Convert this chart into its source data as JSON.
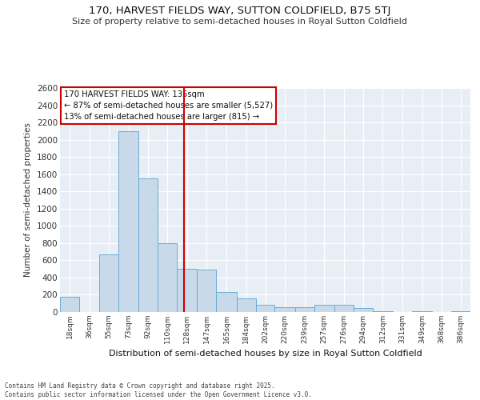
{
  "title1": "170, HARVEST FIELDS WAY, SUTTON COLDFIELD, B75 5TJ",
  "title2": "Size of property relative to semi-detached houses in Royal Sutton Coldfield",
  "xlabel": "Distribution of semi-detached houses by size in Royal Sutton Coldfield",
  "ylabel": "Number of semi-detached properties",
  "footnote": "Contains HM Land Registry data © Crown copyright and database right 2025.\nContains public sector information licensed under the Open Government Licence v3.0.",
  "annotation_title": "170 HARVEST FIELDS WAY: 135sqm",
  "annotation_line1": "← 87% of semi-detached houses are smaller (5,527)",
  "annotation_line2": "13% of semi-detached houses are larger (815) →",
  "property_size": 135,
  "bins": [
    18,
    36,
    55,
    73,
    92,
    110,
    128,
    147,
    165,
    184,
    202,
    220,
    239,
    257,
    276,
    294,
    312,
    331,
    349,
    368,
    386
  ],
  "counts": [
    175,
    0,
    670,
    2100,
    1550,
    800,
    500,
    490,
    230,
    160,
    80,
    60,
    60,
    80,
    80,
    50,
    10,
    0,
    10,
    0,
    10
  ],
  "bar_color": "#c8daea",
  "bar_edge_color": "#6aadd5",
  "bg_color": "#e8eef5",
  "grid_color": "#ffffff",
  "vline_color": "#cc0000",
  "annotation_box_color": "#cc0000",
  "ylim": [
    0,
    2600
  ],
  "yticks": [
    0,
    200,
    400,
    600,
    800,
    1000,
    1200,
    1400,
    1600,
    1800,
    2000,
    2200,
    2400,
    2600
  ]
}
